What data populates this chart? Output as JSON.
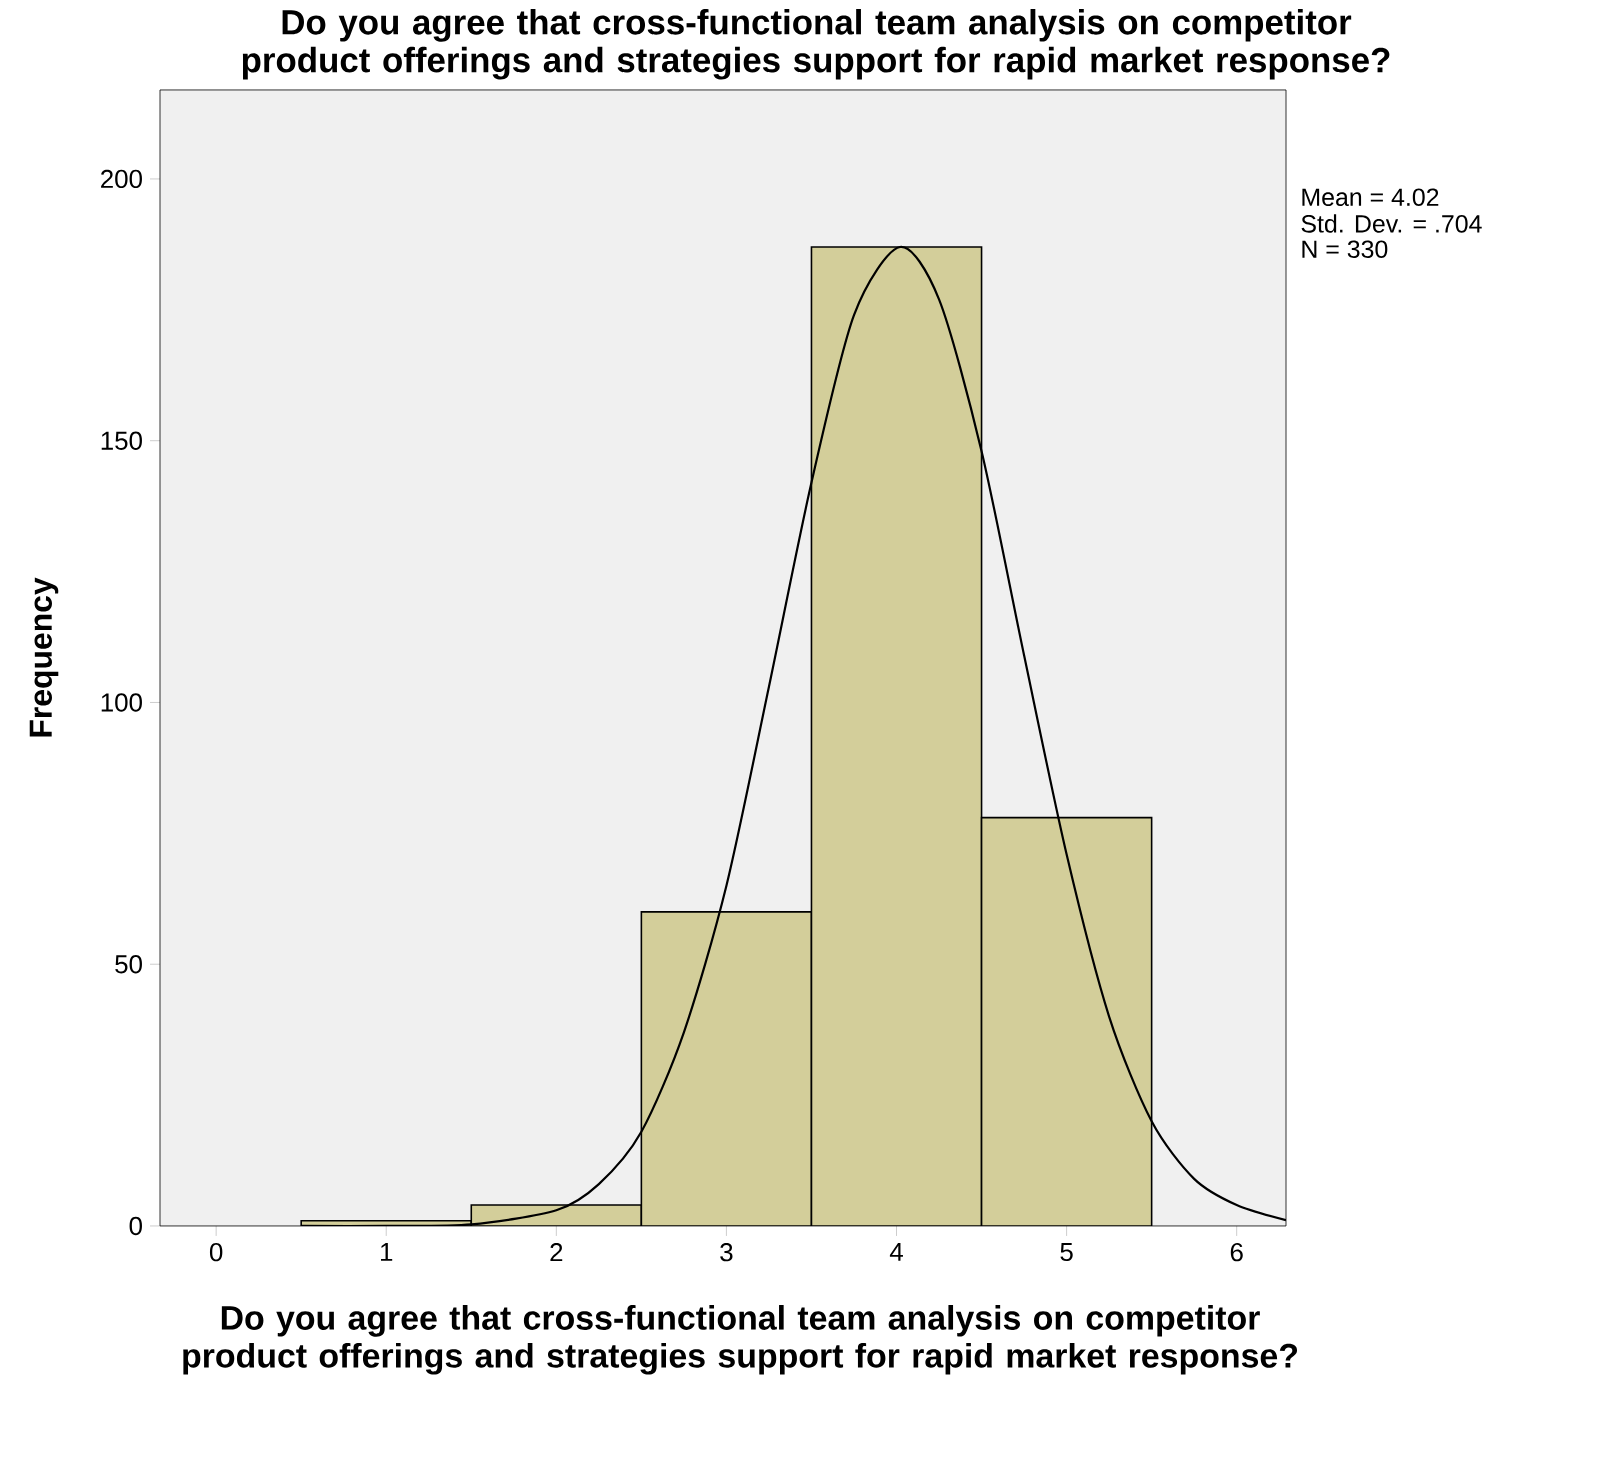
{
  "chart_data": {
    "type": "histogram",
    "title": "Do you agree that cross-functional team analysis on competitor product offerings and strategies support for rapid market response?",
    "xlabel": "Do you agree that cross-functional team analysis on competitor product offerings and strategies support for rapid market response?",
    "ylabel": "Frequency",
    "bins": [
      0.5,
      1.5,
      2.5,
      3.5,
      4.5,
      5.5
    ],
    "values": [
      1,
      4,
      60,
      187,
      78
    ],
    "color": "#d3ce9a",
    "series": [
      {
        "type": "line",
        "color": "#000000",
        "x": [
          0.5,
          1.0,
          1.5,
          2.0,
          2.25,
          2.5,
          2.75,
          3.0,
          3.25,
          3.5,
          3.75,
          4.02,
          4.25,
          4.5,
          4.75,
          5.0,
          5.25,
          5.5,
          5.75,
          6.0,
          6.29
        ],
        "values": [
          0,
          0,
          0.3,
          3,
          8,
          18,
          37,
          65,
          103,
          142,
          174,
          187,
          177,
          148,
          109,
          71,
          40,
          20,
          9,
          4,
          1.1
        ]
      }
    ],
    "xlim": [
      -0.33,
      6.29
    ],
    "xticks": [
      0,
      1,
      2,
      3,
      4,
      5,
      6
    ],
    "ylim": [
      0,
      217
    ],
    "yticks": [
      0,
      50,
      100,
      150,
      200
    ],
    "grid": false,
    "annotations": [
      "Mean = 4.02",
      "Std. Dev. = .704",
      "N = 330"
    ]
  }
}
